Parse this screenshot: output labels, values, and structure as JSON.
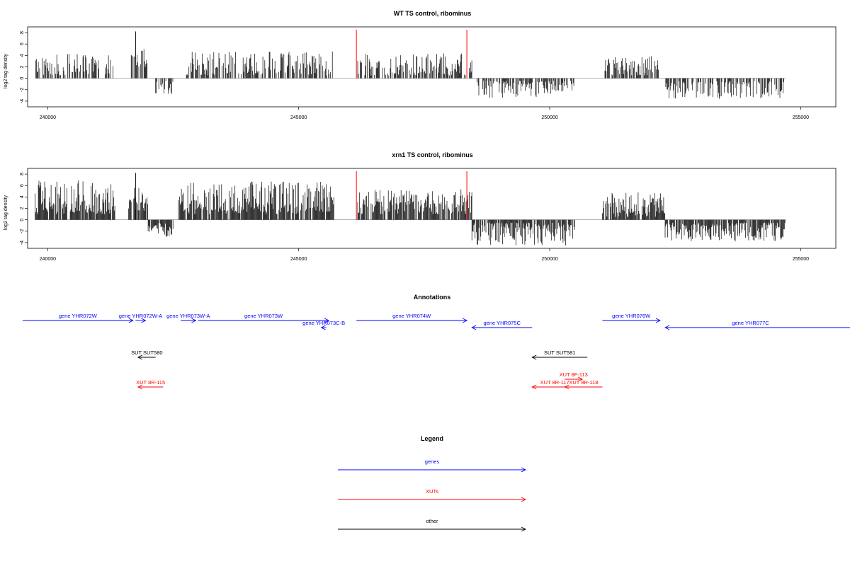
{
  "chart_data": [
    {
      "type": "bar",
      "title": "WT TS control, ribominus",
      "ylabel": "log2 tag density",
      "xlim": [
        239600,
        255700
      ],
      "ylim": [
        -5,
        9
      ],
      "x_ticks": [
        240000,
        245000,
        250000,
        255000
      ],
      "y_ticks": [
        8,
        6,
        4,
        2,
        0,
        -2,
        -4
      ],
      "grid": false,
      "segments": [
        {
          "start": 239750,
          "end": 241350,
          "min": 0.5,
          "max": 4.3,
          "sign": 1
        },
        {
          "start": 241650,
          "end": 242000,
          "min": 2.0,
          "max": 5.6,
          "sign": 1
        },
        {
          "start": 242150,
          "end": 242500,
          "min": 0.5,
          "max": 2.8,
          "sign": -1
        },
        {
          "start": 242750,
          "end": 245700,
          "min": 0.5,
          "max": 4.7,
          "sign": 1
        },
        {
          "start": 246150,
          "end": 248450,
          "min": 0.5,
          "max": 4.4,
          "sign": 1
        },
        {
          "start": 248550,
          "end": 250500,
          "min": 0.4,
          "max": 3.4,
          "sign": -1
        },
        {
          "start": 251100,
          "end": 252200,
          "min": 0.5,
          "max": 3.9,
          "sign": 1
        },
        {
          "start": 252300,
          "end": 254700,
          "min": 0.5,
          "max": 3.6,
          "sign": -1
        }
      ],
      "peaks": [
        {
          "x": 241750,
          "y": 8.2
        }
      ],
      "baseline": {
        "start": 239750,
        "end": 254700
      },
      "marker_lines": {
        "color": "#ff4040",
        "x": [
          246150,
          248350
        ],
        "y": 8.5
      }
    },
    {
      "type": "bar",
      "title": "xrn1 TS control, ribominus",
      "ylabel": "log2 tag density",
      "xlim": [
        239600,
        255700
      ],
      "ylim": [
        -5,
        9
      ],
      "x_ticks": [
        240000,
        245000,
        250000,
        255000
      ],
      "y_ticks": [
        8,
        6,
        4,
        2,
        0,
        -2,
        -4
      ],
      "grid": false,
      "segments": [
        {
          "start": 239750,
          "end": 241350,
          "min": 1.0,
          "max": 6.9,
          "sign": 1
        },
        {
          "start": 241600,
          "end": 242000,
          "min": 1.5,
          "max": 6.2,
          "sign": 1
        },
        {
          "start": 242000,
          "end": 242500,
          "min": 0.5,
          "max": 3.0,
          "sign": -1
        },
        {
          "start": 242600,
          "end": 245700,
          "min": 1.0,
          "max": 6.7,
          "sign": 1
        },
        {
          "start": 246150,
          "end": 248450,
          "min": 1.0,
          "max": 5.4,
          "sign": 1
        },
        {
          "start": 248450,
          "end": 250500,
          "min": 0.5,
          "max": 4.5,
          "sign": -1
        },
        {
          "start": 251050,
          "end": 252300,
          "min": 0.5,
          "max": 4.9,
          "sign": 1
        },
        {
          "start": 252300,
          "end": 254700,
          "min": 0.5,
          "max": 3.8,
          "sign": -1
        }
      ],
      "peaks": [
        {
          "x": 241750,
          "y": 8.2
        }
      ],
      "baseline": {
        "start": 239750,
        "end": 254700
      },
      "marker_lines": {
        "color": "#ff4040",
        "x": [
          246150,
          248350
        ],
        "y": 8.5
      }
    }
  ],
  "annotations": {
    "title": "Annotations",
    "features": [
      {
        "label": "gene YHR072W",
        "start": 239500,
        "end": 241700,
        "row": 0,
        "strand": "+",
        "kind": "gene"
      },
      {
        "label": "gene YHR072W-A",
        "start": 241750,
        "end": 241950,
        "row": 0,
        "strand": "+",
        "kind": "gene"
      },
      {
        "label": "gene YHR073W-A",
        "start": 242650,
        "end": 242950,
        "row": 0,
        "strand": "+",
        "kind": "gene"
      },
      {
        "label": "gene YHR073W",
        "start": 243000,
        "end": 245600,
        "row": 0,
        "strand": "+",
        "kind": "gene"
      },
      {
        "label": "gene YHR073C-B",
        "start": 245450,
        "end": 245550,
        "row": 1,
        "strand": "-",
        "kind": "gene"
      },
      {
        "label": "gene YHR074W",
        "start": 246150,
        "end": 248350,
        "row": 0,
        "strand": "+",
        "kind": "gene"
      },
      {
        "label": "gene YHR075C",
        "start": 248450,
        "end": 249650,
        "row": 1,
        "strand": "-",
        "kind": "gene"
      },
      {
        "label": "gene YHR076W",
        "start": 251050,
        "end": 252200,
        "row": 0,
        "strand": "+",
        "kind": "gene"
      },
      {
        "label": "gene YHR077C",
        "start": 252300,
        "end": 256000,
        "row": 1,
        "strand": "-",
        "kind": "gene"
      },
      {
        "label": "SUT SUT580",
        "start": 241800,
        "end": 242150,
        "row": 4,
        "strand": "-",
        "kind": "other"
      },
      {
        "label": "SUT SUT581",
        "start": 249650,
        "end": 250750,
        "row": 4,
        "strand": "-",
        "kind": "other"
      },
      {
        "label": "XUT 8F-113",
        "start": 250300,
        "end": 250650,
        "row": 7,
        "strand": "+",
        "kind": "xut"
      },
      {
        "label": "XUT 8R-115",
        "start": 241800,
        "end": 242300,
        "row": 8,
        "strand": "-",
        "kind": "xut"
      },
      {
        "label": "XUT 8R-117",
        "start": 249650,
        "end": 250550,
        "row": 8,
        "strand": "-",
        "kind": "xut"
      },
      {
        "label": "XUT 8R-118",
        "start": 250300,
        "end": 251050,
        "row": 8,
        "strand": "-",
        "kind": "xut"
      }
    ]
  },
  "legend": {
    "title": "Legend",
    "items": [
      {
        "label": "genes",
        "color": "#0000ff"
      },
      {
        "label": "XUTs",
        "color": "#ff0000"
      },
      {
        "label": "other",
        "color": "#000000"
      }
    ]
  },
  "colors": {
    "gene": "#0000ff",
    "xut": "#ff0000",
    "other": "#000000",
    "marker": "#ff4040"
  }
}
